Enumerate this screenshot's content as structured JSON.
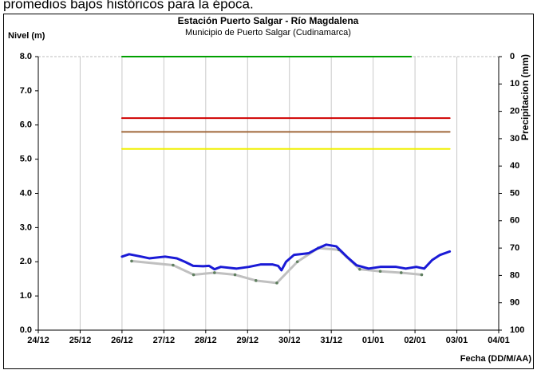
{
  "header_text": "promedios bajos históricos para la época.",
  "chart_data": {
    "type": "line",
    "title": "Estación Puerto Salgar - Río Magdalena",
    "subtitle": "Municipio de Puerto Salgar (Cudinamarca)",
    "ylabel": "Nivel (m)",
    "y2label": "Precipitacion (mm)",
    "xlabel": "Fecha (DD/M/AA)",
    "xlim": [
      0,
      11
    ],
    "xticks": [
      {
        "value": 0,
        "label": "24/12"
      },
      {
        "value": 1,
        "label": "25/12"
      },
      {
        "value": 2,
        "label": "26/12"
      },
      {
        "value": 3,
        "label": "27/12"
      },
      {
        "value": 4,
        "label": "28/12"
      },
      {
        "value": 5,
        "label": "29/12"
      },
      {
        "value": 6,
        "label": "30/12"
      },
      {
        "value": 7,
        "label": "31/12"
      },
      {
        "value": 8,
        "label": "01/01"
      },
      {
        "value": 9,
        "label": "02/01"
      },
      {
        "value": 10,
        "label": "03/01"
      },
      {
        "value": 11,
        "label": "04/01"
      }
    ],
    "ylim": [
      0,
      8
    ],
    "yticks": [
      {
        "value": 0,
        "label": "0.0"
      },
      {
        "value": 1,
        "label": "1.0"
      },
      {
        "value": 2,
        "label": "2.0"
      },
      {
        "value": 3,
        "label": "3.0"
      },
      {
        "value": 4,
        "label": "4.0"
      },
      {
        "value": 5,
        "label": "5.0"
      },
      {
        "value": 6,
        "label": "6.0"
      },
      {
        "value": 7,
        "label": "7.0"
      },
      {
        "value": 8,
        "label": "8.0"
      }
    ],
    "y2lim": [
      100,
      0
    ],
    "y2ticks": [
      0,
      10,
      20,
      30,
      40,
      50,
      60,
      70,
      80,
      90,
      100
    ],
    "grid": "x",
    "series": [
      {
        "color": "#00a000",
        "width": 2,
        "x": [
          2,
          8.91
        ],
        "values": [
          8.0,
          8.0
        ]
      },
      {
        "color": "#d00000",
        "width": 2,
        "x": [
          2,
          9.83
        ],
        "values": [
          6.2,
          6.2
        ]
      },
      {
        "color": "#a0673a",
        "width": 2,
        "x": [
          2,
          9.83
        ],
        "values": [
          5.8,
          5.8
        ]
      },
      {
        "color": "#f0f000",
        "width": 2,
        "x": [
          2,
          9.83
        ],
        "values": [
          5.3,
          5.3
        ]
      },
      {
        "color": "#c0c0c0",
        "width": 3,
        "marker_color": "#5f7f5f",
        "x": [
          2.23,
          3.22,
          3.71,
          4.21,
          4.7,
          5.2,
          5.7,
          6.19,
          6.69,
          7.18,
          7.68,
          8.17,
          8.67,
          9.16
        ],
        "values": [
          2.02,
          1.9,
          1.62,
          1.68,
          1.62,
          1.45,
          1.38,
          2.0,
          2.4,
          2.35,
          1.78,
          1.72,
          1.68,
          1.62
        ]
      },
      {
        "color": "#1a1ad6",
        "width": 3,
        "x": [
          2.0,
          2.17,
          2.46,
          2.65,
          3.03,
          3.31,
          3.5,
          3.7,
          3.94,
          4.08,
          4.21,
          4.36,
          4.74,
          5.03,
          5.31,
          5.6,
          5.73,
          5.81,
          5.92,
          6.11,
          6.46,
          6.69,
          6.88,
          7.12,
          7.37,
          7.6,
          7.89,
          8.17,
          8.55,
          8.78,
          9.03,
          9.22,
          9.41,
          9.6,
          9.83
        ],
        "values": [
          2.15,
          2.22,
          2.15,
          2.1,
          2.15,
          2.1,
          2.0,
          1.88,
          1.87,
          1.88,
          1.78,
          1.85,
          1.8,
          1.85,
          1.92,
          1.92,
          1.88,
          1.75,
          2.0,
          2.2,
          2.25,
          2.4,
          2.5,
          2.45,
          2.15,
          1.9,
          1.8,
          1.85,
          1.85,
          1.8,
          1.85,
          1.8,
          2.05,
          2.2,
          2.3
        ]
      }
    ]
  }
}
